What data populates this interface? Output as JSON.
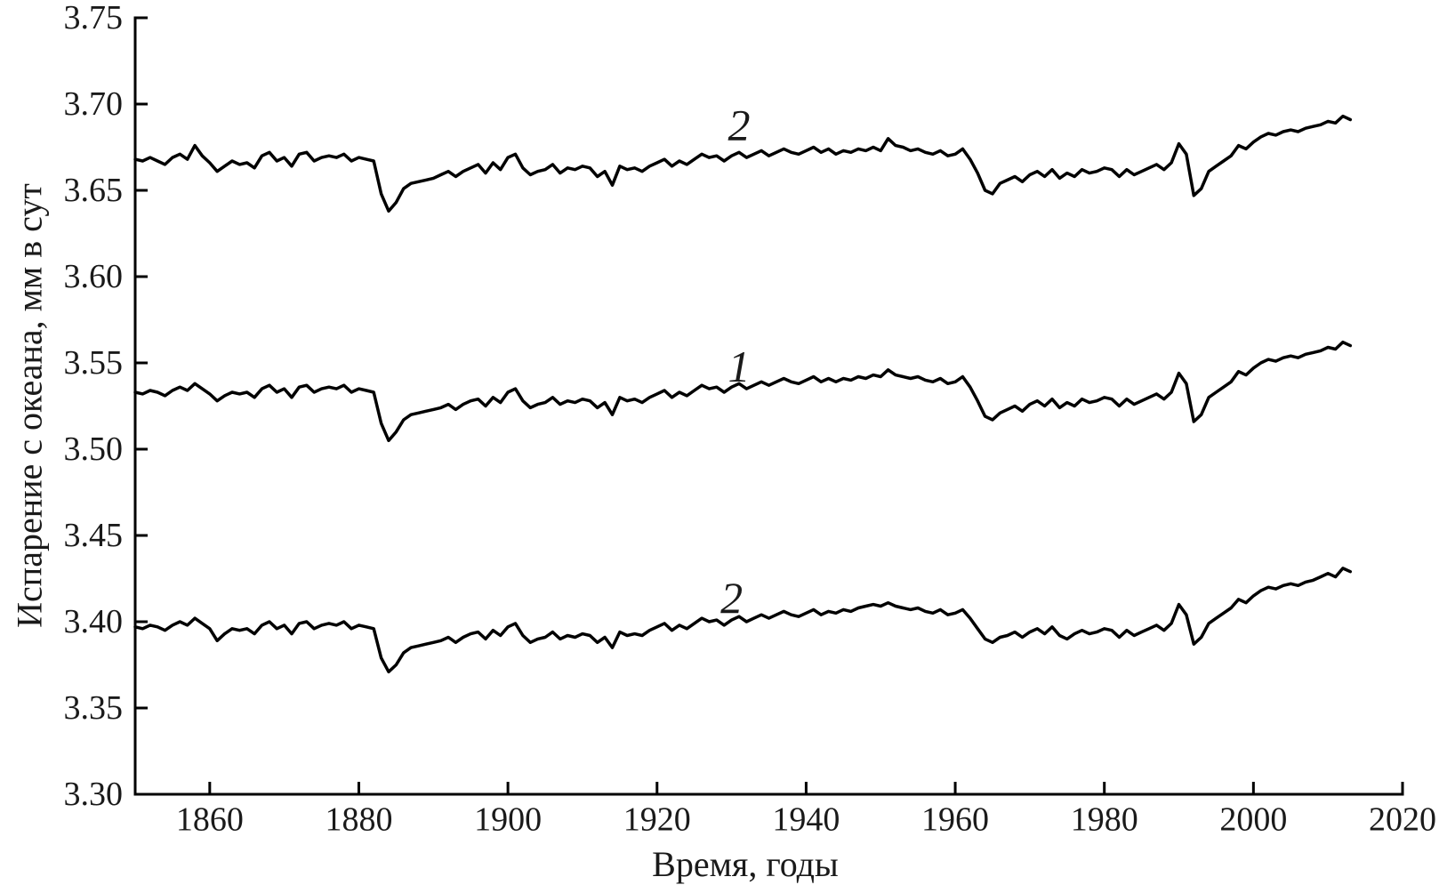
{
  "figure": {
    "background_color": "#ffffff",
    "line_color": "#000000",
    "text_color": "#1a1a1a"
  },
  "chart_data": {
    "type": "line",
    "title": "",
    "xlabel": "Время, годы",
    "ylabel": "Испарение с океана, мм в сут",
    "xlim": [
      1850,
      2020
    ],
    "ylim": [
      3.3,
      3.75
    ],
    "grid": false,
    "legend_position": "inline-curve-labels",
    "xticks": [
      {
        "v": 1860,
        "label": "1860"
      },
      {
        "v": 1880,
        "label": "1880"
      },
      {
        "v": 1900,
        "label": "1900"
      },
      {
        "v": 1920,
        "label": "1920"
      },
      {
        "v": 1940,
        "label": "1940"
      },
      {
        "v": 1960,
        "label": "1960"
      },
      {
        "v": 1980,
        "label": "1980"
      },
      {
        "v": 2000,
        "label": "2000"
      },
      {
        "v": 2020,
        "label": "2020"
      }
    ],
    "yticks": [
      {
        "v": 3.3,
        "label": "3.30"
      },
      {
        "v": 3.35,
        "label": "3.35"
      },
      {
        "v": 3.4,
        "label": "3.40"
      },
      {
        "v": 3.45,
        "label": "3.45"
      },
      {
        "v": 3.5,
        "label": "3.50"
      },
      {
        "v": 3.55,
        "label": "3.55"
      },
      {
        "v": 3.6,
        "label": "3.60"
      },
      {
        "v": 3.65,
        "label": "3.65"
      },
      {
        "v": 3.7,
        "label": "3.70"
      },
      {
        "v": 3.75,
        "label": "3.75"
      }
    ],
    "x_start": 1850,
    "x_step": 1,
    "series": [
      {
        "name": "curve-2-upper",
        "label": "2",
        "label_at": {
          "x": 1931,
          "y": 3.688
        },
        "values": [
          3.668,
          3.667,
          3.669,
          3.667,
          3.665,
          3.669,
          3.671,
          3.668,
          3.676,
          3.67,
          3.666,
          3.661,
          3.664,
          3.667,
          3.665,
          3.666,
          3.663,
          3.67,
          3.672,
          3.667,
          3.669,
          3.664,
          3.671,
          3.672,
          3.667,
          3.669,
          3.67,
          3.669,
          3.671,
          3.667,
          3.669,
          3.668,
          3.667,
          3.648,
          3.638,
          3.643,
          3.651,
          3.654,
          3.655,
          3.656,
          3.657,
          3.659,
          3.661,
          3.658,
          3.661,
          3.663,
          3.665,
          3.66,
          3.666,
          3.662,
          3.669,
          3.671,
          3.663,
          3.659,
          3.661,
          3.662,
          3.665,
          3.66,
          3.663,
          3.662,
          3.664,
          3.663,
          3.658,
          3.661,
          3.653,
          3.664,
          3.662,
          3.663,
          3.661,
          3.664,
          3.666,
          3.668,
          3.664,
          3.667,
          3.665,
          3.668,
          3.671,
          3.669,
          3.67,
          3.667,
          3.67,
          3.672,
          3.669,
          3.671,
          3.673,
          3.67,
          3.672,
          3.674,
          3.672,
          3.671,
          3.673,
          3.675,
          3.672,
          3.674,
          3.671,
          3.673,
          3.672,
          3.674,
          3.673,
          3.675,
          3.673,
          3.68,
          3.676,
          3.675,
          3.673,
          3.674,
          3.672,
          3.671,
          3.673,
          3.67,
          3.671,
          3.674,
          3.668,
          3.66,
          3.65,
          3.648,
          3.654,
          3.656,
          3.658,
          3.655,
          3.659,
          3.661,
          3.658,
          3.662,
          3.657,
          3.66,
          3.658,
          3.662,
          3.66,
          3.661,
          3.663,
          3.662,
          3.658,
          3.662,
          3.659,
          3.661,
          3.663,
          3.665,
          3.662,
          3.666,
          3.677,
          3.671,
          3.647,
          3.651,
          3.661,
          3.664,
          3.667,
          3.67,
          3.676,
          3.674,
          3.678,
          3.681,
          3.683,
          3.682,
          3.684,
          3.685,
          3.684,
          3.686,
          3.687,
          3.688,
          3.69,
          3.689,
          3.693,
          3.691
        ]
      },
      {
        "name": "curve-1-middle",
        "label": "1",
        "label_at": {
          "x": 1931,
          "y": 3.548
        },
        "values": [
          3.533,
          3.532,
          3.534,
          3.533,
          3.531,
          3.534,
          3.536,
          3.534,
          3.538,
          3.535,
          3.532,
          3.528,
          3.531,
          3.533,
          3.532,
          3.533,
          3.53,
          3.535,
          3.537,
          3.533,
          3.535,
          3.53,
          3.536,
          3.537,
          3.533,
          3.535,
          3.536,
          3.535,
          3.537,
          3.533,
          3.535,
          3.534,
          3.533,
          3.515,
          3.505,
          3.51,
          3.517,
          3.52,
          3.521,
          3.522,
          3.523,
          3.524,
          3.526,
          3.523,
          3.526,
          3.528,
          3.529,
          3.525,
          3.53,
          3.527,
          3.533,
          3.535,
          3.528,
          3.524,
          3.526,
          3.527,
          3.53,
          3.526,
          3.528,
          3.527,
          3.529,
          3.528,
          3.524,
          3.527,
          3.52,
          3.53,
          3.528,
          3.529,
          3.527,
          3.53,
          3.532,
          3.534,
          3.53,
          3.533,
          3.531,
          3.534,
          3.537,
          3.535,
          3.536,
          3.533,
          3.536,
          3.538,
          3.535,
          3.537,
          3.539,
          3.537,
          3.539,
          3.541,
          3.539,
          3.538,
          3.54,
          3.542,
          3.539,
          3.541,
          3.539,
          3.541,
          3.54,
          3.542,
          3.541,
          3.543,
          3.542,
          3.546,
          3.543,
          3.542,
          3.541,
          3.542,
          3.54,
          3.539,
          3.541,
          3.538,
          3.539,
          3.542,
          3.536,
          3.528,
          3.519,
          3.517,
          3.521,
          3.523,
          3.525,
          3.522,
          3.526,
          3.528,
          3.525,
          3.529,
          3.524,
          3.527,
          3.525,
          3.529,
          3.527,
          3.528,
          3.53,
          3.529,
          3.525,
          3.529,
          3.526,
          3.528,
          3.53,
          3.532,
          3.529,
          3.533,
          3.544,
          3.538,
          3.516,
          3.52,
          3.53,
          3.533,
          3.536,
          3.539,
          3.545,
          3.543,
          3.547,
          3.55,
          3.552,
          3.551,
          3.553,
          3.554,
          3.553,
          3.555,
          3.556,
          3.557,
          3.559,
          3.558,
          3.562,
          3.56
        ]
      },
      {
        "name": "curve-2-lower",
        "label": "2",
        "label_at": {
          "x": 1930,
          "y": 3.414
        },
        "values": [
          3.397,
          3.396,
          3.398,
          3.397,
          3.395,
          3.398,
          3.4,
          3.398,
          3.402,
          3.399,
          3.396,
          3.389,
          3.393,
          3.396,
          3.395,
          3.396,
          3.393,
          3.398,
          3.4,
          3.396,
          3.398,
          3.393,
          3.399,
          3.4,
          3.396,
          3.398,
          3.399,
          3.398,
          3.4,
          3.396,
          3.398,
          3.397,
          3.396,
          3.379,
          3.371,
          3.375,
          3.382,
          3.385,
          3.386,
          3.387,
          3.388,
          3.389,
          3.391,
          3.388,
          3.391,
          3.393,
          3.394,
          3.39,
          3.395,
          3.392,
          3.397,
          3.399,
          3.392,
          3.388,
          3.39,
          3.391,
          3.394,
          3.39,
          3.392,
          3.391,
          3.393,
          3.392,
          3.388,
          3.391,
          3.385,
          3.394,
          3.392,
          3.393,
          3.392,
          3.395,
          3.397,
          3.399,
          3.395,
          3.398,
          3.396,
          3.399,
          3.402,
          3.4,
          3.401,
          3.398,
          3.401,
          3.403,
          3.4,
          3.402,
          3.404,
          3.402,
          3.404,
          3.406,
          3.404,
          3.403,
          3.405,
          3.407,
          3.404,
          3.406,
          3.405,
          3.407,
          3.406,
          3.408,
          3.409,
          3.41,
          3.409,
          3.411,
          3.409,
          3.408,
          3.407,
          3.408,
          3.406,
          3.405,
          3.407,
          3.404,
          3.405,
          3.407,
          3.402,
          3.396,
          3.39,
          3.388,
          3.391,
          3.392,
          3.394,
          3.391,
          3.394,
          3.396,
          3.393,
          3.397,
          3.392,
          3.39,
          3.393,
          3.395,
          3.393,
          3.394,
          3.396,
          3.395,
          3.391,
          3.395,
          3.392,
          3.394,
          3.396,
          3.398,
          3.395,
          3.399,
          3.41,
          3.404,
          3.387,
          3.391,
          3.399,
          3.402,
          3.405,
          3.408,
          3.413,
          3.411,
          3.415,
          3.418,
          3.42,
          3.419,
          3.421,
          3.422,
          3.421,
          3.423,
          3.424,
          3.426,
          3.428,
          3.426,
          3.431,
          3.429
        ]
      }
    ]
  }
}
